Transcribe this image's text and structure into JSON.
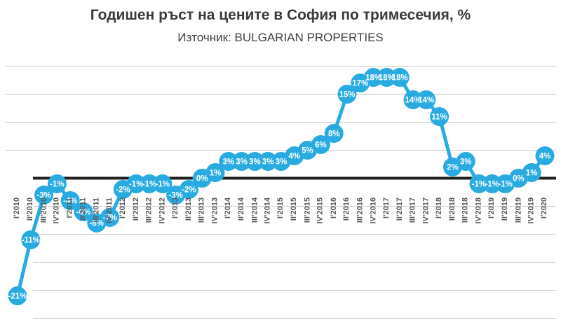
{
  "header": {
    "title": "Годишен ръст на цените в София по тримесечия, %",
    "subtitle": "Източник: BULGARIAN PROPERTIES"
  },
  "chart_data": {
    "type": "line",
    "title": "Годишен ръст на цените в София по тримесечия, %",
    "subtitle": "Източник: BULGARIAN PROPERTIES",
    "categories": [
      "I'2010",
      "II'2010",
      "III'2010",
      "IV'2010",
      "I'2011",
      "II'2011",
      "III'2011",
      "IV'2011",
      "I'2012",
      "II'2012",
      "III'2012",
      "IV'2012",
      "I'2013",
      "II'2013",
      "III'2013",
      "IV'2013",
      "I'2014",
      "II'2014",
      "III'2014",
      "IV'2014",
      "I'2015",
      "II'2015",
      "III'2015",
      "IV'2015",
      "I'2016",
      "II'2016",
      "III'2016",
      "IV'2016",
      "I'2017",
      "II'2017",
      "III'2017",
      "IV'2017",
      "I'2018",
      "II'2018",
      "III'2018",
      "IV'2018",
      "I'2019",
      "II'2019",
      "III'2019",
      "IV'2019",
      "I'2020"
    ],
    "values": [
      -21,
      -11,
      -3,
      -1,
      -4,
      -6,
      -8,
      -7,
      -2,
      -1,
      -1,
      -1,
      -3,
      -2,
      0,
      1,
      3,
      3,
      3,
      3,
      3,
      4,
      5,
      6,
      8,
      15,
      17,
      18,
      18,
      18,
      14,
      14,
      11,
      2,
      3,
      -1,
      -1,
      -1,
      0,
      1,
      4
    ],
    "point_labels": [
      "-21%",
      "-11%",
      "-3%",
      "-1%",
      "-4%",
      "-6%",
      "-8%",
      "-7%",
      "-2%",
      "-1%",
      "-1%",
      "-1%",
      "-3%",
      "-2%",
      "0%",
      "1%",
      "3%",
      "3%",
      "3%",
      "3%",
      "3%",
      "4%",
      "5%",
      "6%",
      "8%",
      "15%",
      "17%",
      "18%",
      "18%",
      "18%",
      "14%",
      "14%",
      "11%",
      "2%",
      "3%",
      "-1%",
      "-1%",
      "-1%",
      "0%",
      "1%",
      "4%"
    ],
    "xlabel": "",
    "ylabel": "",
    "ylim": [
      -25,
      20
    ],
    "grid": true,
    "grid_step": 5,
    "legend": false,
    "colors": {
      "line": "#29ABE2",
      "marker": "#29ABE2",
      "point_label_text": "#FFFFFF",
      "axis_tick_text": "#595959",
      "gridline": "#C6C6C6",
      "zero_line": "#212121",
      "title_text": "#3A3A3A",
      "subtitle_text": "#404040"
    }
  }
}
